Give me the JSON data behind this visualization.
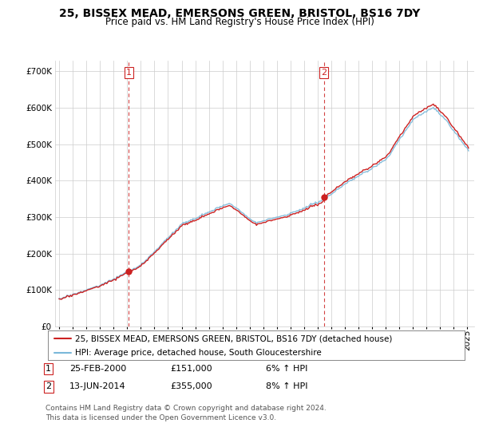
{
  "title": "25, BISSEX MEAD, EMERSONS GREEN, BRISTOL, BS16 7DY",
  "subtitle": "Price paid vs. HM Land Registry's House Price Index (HPI)",
  "sale1_time": 2000.125,
  "sale1_price": 151000,
  "sale1_label": "1",
  "sale2_time": 2014.458,
  "sale2_price": 355000,
  "sale2_label": "2",
  "legend_line1": "25, BISSEX MEAD, EMERSONS GREEN, BRISTOL, BS16 7DY (detached house)",
  "legend_line2": "HPI: Average price, detached house, South Gloucestershire",
  "hpi_color": "#7ab8d9",
  "price_color": "#cc2222",
  "vline_color": "#cc2222",
  "bg_color": "#ffffff",
  "grid_color": "#cccccc",
  "ylim_min": 0,
  "ylim_max": 730000,
  "xlim_start": 1994.7,
  "xlim_end": 2025.5,
  "x_ticks_start": 1995,
  "x_ticks_end": 2026,
  "ytick_interval": 100000,
  "title_fontsize": 10,
  "subtitle_fontsize": 8.5,
  "tick_fontsize": 7.5,
  "legend_fontsize": 7.5,
  "table_fontsize": 8,
  "footer_fontsize": 6.5,
  "footer": "Contains HM Land Registry data © Crown copyright and database right 2024.\nThis data is licensed under the Open Government Licence v3.0.",
  "table_row1_date": "25-FEB-2000",
  "table_row1_price": "£151,000",
  "table_row1_hpi": "6% ↑ HPI",
  "table_row2_date": "13-JUN-2014",
  "table_row2_price": "£355,000",
  "table_row2_hpi": "8% ↑ HPI"
}
